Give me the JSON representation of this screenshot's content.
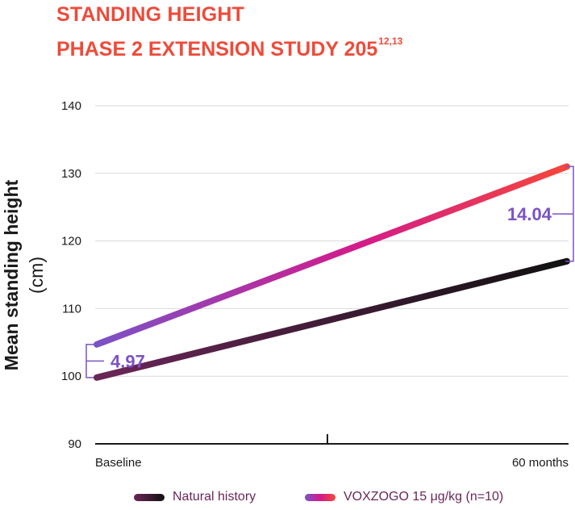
{
  "title": "STANDING HEIGHT",
  "subtitle": "PHASE 2 EXTENSION STUDY 205",
  "subtitle_refs": "12,13",
  "chart_data": {
    "type": "line",
    "x": [
      "Baseline",
      "60 months"
    ],
    "ylabel": "Mean standing height",
    "ylabel_unit": "(cm)",
    "ylim": [
      90,
      140
    ],
    "yticks": [
      90,
      100,
      110,
      120,
      130,
      140
    ],
    "grid": true,
    "legend_position": "bottom",
    "series": [
      {
        "name": "Natural history",
        "values": [
          99.8,
          117.0
        ]
      },
      {
        "name": "VOXZOGO 15 μg/kg (n=10)",
        "values": [
          104.7,
          131.0
        ]
      }
    ],
    "annotations": [
      {
        "text": "4.97",
        "at": "Baseline"
      },
      {
        "text": "14.04",
        "at": "60 months"
      }
    ]
  },
  "colors": {
    "title": "#ee4b3a",
    "natural_history_start": "#6b2659",
    "natural_history_end": "#111111",
    "voxzogo_start": "#7b52c6",
    "voxzogo_mid": "#d21b8c",
    "voxzogo_end": "#f4473a",
    "annotation": "#7b52c6",
    "grid": "#d9d9d9",
    "axis": "#1a1a1a"
  }
}
